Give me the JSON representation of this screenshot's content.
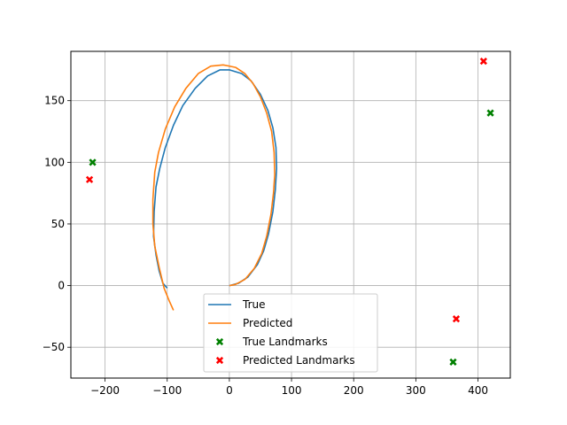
{
  "chart_data": {
    "type": "line",
    "title": "",
    "xlabel": "",
    "ylabel": "",
    "xlim": [
      -255,
      452
    ],
    "ylim": [
      -75,
      190
    ],
    "xticks": [
      -200,
      -100,
      0,
      100,
      200,
      300,
      400
    ],
    "yticks": [
      -50,
      0,
      50,
      100,
      150
    ],
    "grid": true,
    "legend_position": "lower-center",
    "series": [
      {
        "name": "True",
        "kind": "line",
        "color": "#1f77b4",
        "points": [
          [
            0,
            0
          ],
          [
            15,
            2
          ],
          [
            30,
            7
          ],
          [
            45,
            17
          ],
          [
            55,
            28
          ],
          [
            63,
            42
          ],
          [
            70,
            60
          ],
          [
            74,
            78
          ],
          [
            76,
            95
          ],
          [
            75,
            112
          ],
          [
            70,
            128
          ],
          [
            62,
            142
          ],
          [
            50,
            155
          ],
          [
            35,
            166
          ],
          [
            20,
            172
          ],
          [
            0,
            175
          ],
          [
            -15,
            175
          ],
          [
            -35,
            170
          ],
          [
            -55,
            160
          ],
          [
            -75,
            146
          ],
          [
            -90,
            130
          ],
          [
            -103,
            112
          ],
          [
            -112,
            95
          ],
          [
            -118,
            80
          ],
          [
            -121,
            60
          ],
          [
            -122,
            40
          ],
          [
            -118,
            25
          ],
          [
            -113,
            12
          ],
          [
            -107,
            2
          ],
          [
            -100,
            -2
          ]
        ]
      },
      {
        "name": "Predicted",
        "kind": "line",
        "color": "#ff7f0e",
        "points": [
          [
            0,
            0
          ],
          [
            10,
            1
          ],
          [
            25,
            5
          ],
          [
            40,
            14
          ],
          [
            52,
            26
          ],
          [
            60,
            40
          ],
          [
            67,
            58
          ],
          [
            71,
            75
          ],
          [
            73,
            90
          ],
          [
            72,
            108
          ],
          [
            68,
            125
          ],
          [
            60,
            140
          ],
          [
            50,
            153
          ],
          [
            38,
            164
          ],
          [
            25,
            172
          ],
          [
            10,
            177
          ],
          [
            -10,
            179
          ],
          [
            -30,
            178
          ],
          [
            -50,
            172
          ],
          [
            -70,
            160
          ],
          [
            -88,
            145
          ],
          [
            -103,
            127
          ],
          [
            -114,
            108
          ],
          [
            -120,
            92
          ],
          [
            -123,
            70
          ],
          [
            -123,
            50
          ],
          [
            -120,
            32
          ],
          [
            -113,
            15
          ],
          [
            -105,
            -2
          ],
          [
            -97,
            -12
          ],
          [
            -90,
            -20
          ]
        ]
      },
      {
        "name": "True Landmarks",
        "kind": "scatter",
        "color": "#008000",
        "points": [
          [
            -220,
            100
          ],
          [
            420,
            140
          ],
          [
            360,
            -62
          ]
        ]
      },
      {
        "name": "Predicted Landmarks",
        "kind": "scatter",
        "color": "#ff0000",
        "points": [
          [
            -225,
            86
          ],
          [
            409,
            182
          ],
          [
            365,
            -27
          ]
        ]
      }
    ]
  }
}
